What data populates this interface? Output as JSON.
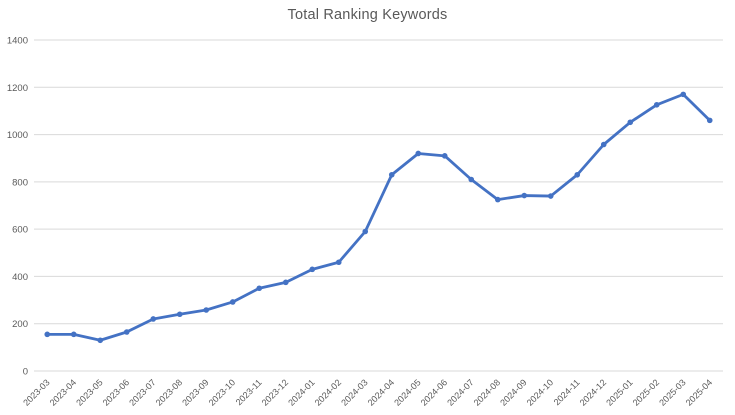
{
  "chart_data": {
    "type": "line",
    "title": "Total Ranking Keywords",
    "categories": [
      "2023-03",
      "2023-04",
      "2023-05",
      "2023-06",
      "2023-07",
      "2023-08",
      "2023-09",
      "2023-10",
      "2023-11",
      "2023-12",
      "2024-01",
      "2024-02",
      "2024-03",
      "2024-04",
      "2024-05",
      "2024-06",
      "2024-07",
      "2024-08",
      "2024-09",
      "2024-10",
      "2024-11",
      "2024-12",
      "2025-01",
      "2025-02",
      "2025-03",
      "2025-04"
    ],
    "values": [
      155,
      155,
      130,
      165,
      220,
      240,
      258,
      292,
      350,
      375,
      430,
      460,
      590,
      830,
      920,
      910,
      810,
      725,
      742,
      740,
      830,
      958,
      1052,
      1126,
      1170,
      1060
    ],
    "xlabel": "",
    "ylabel": "",
    "ylim": [
      0,
      1400
    ],
    "yticks": [
      0,
      200,
      400,
      600,
      800,
      1000,
      1200,
      1400
    ],
    "grid": true,
    "legend": "none",
    "marker": "circle",
    "colors": {
      "line": "#4472C4",
      "marker": "#4472C4",
      "gridline": "#D9D9D9",
      "axis_label": "#595959",
      "title": "#595959",
      "background": "#FFFFFF"
    }
  }
}
